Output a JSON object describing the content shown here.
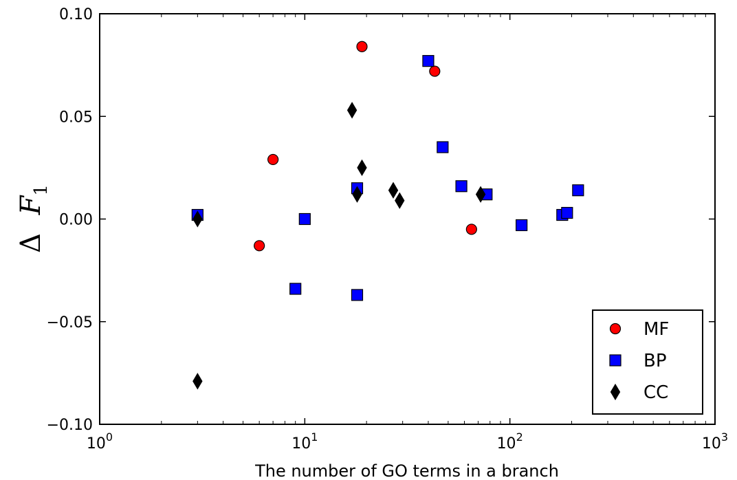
{
  "chart_data": {
    "type": "scatter",
    "xscale": "log",
    "xlim": [
      1,
      1000
    ],
    "ylim": [
      -0.1,
      0.1
    ],
    "xlabel": "The number of GO terms in a branch",
    "ylabel": "Δ F1",
    "x_tick_labels": [
      {
        "value": 1,
        "base": "10",
        "exp": "0"
      },
      {
        "value": 10,
        "base": "10",
        "exp": "1"
      },
      {
        "value": 100,
        "base": "10",
        "exp": "2"
      },
      {
        "value": 1000,
        "base": "10",
        "exp": "3"
      }
    ],
    "y_ticks": [
      -0.1,
      -0.05,
      0.0,
      0.05,
      0.1
    ],
    "y_tick_labels": [
      "−0.10",
      "−0.05",
      "0.00",
      "0.05",
      "0.10"
    ],
    "grid": false,
    "legend_position": "lower-right",
    "series": [
      {
        "name": "MF",
        "marker": "circle",
        "color": "#ff0000",
        "points": [
          {
            "x": 6,
            "y": -0.013
          },
          {
            "x": 7,
            "y": 0.029
          },
          {
            "x": 19,
            "y": 0.084
          },
          {
            "x": 43,
            "y": 0.072
          },
          {
            "x": 65,
            "y": -0.005
          }
        ]
      },
      {
        "name": "BP",
        "marker": "square",
        "color": "#0000ff",
        "points": [
          {
            "x": 3,
            "y": 0.002
          },
          {
            "x": 9,
            "y": -0.034
          },
          {
            "x": 10,
            "y": 0.0
          },
          {
            "x": 18,
            "y": 0.015
          },
          {
            "x": 18,
            "y": -0.037
          },
          {
            "x": 40,
            "y": 0.077
          },
          {
            "x": 47,
            "y": 0.035
          },
          {
            "x": 58,
            "y": 0.016
          },
          {
            "x": 77,
            "y": 0.012
          },
          {
            "x": 114,
            "y": -0.003
          },
          {
            "x": 180,
            "y": 0.002
          },
          {
            "x": 190,
            "y": 0.003
          },
          {
            "x": 215,
            "y": 0.014
          }
        ]
      },
      {
        "name": "CC",
        "marker": "diamond",
        "color": "#000000",
        "points": [
          {
            "x": 3,
            "y": 0.0
          },
          {
            "x": 3,
            "y": -0.079
          },
          {
            "x": 17,
            "y": 0.053
          },
          {
            "x": 18,
            "y": 0.012
          },
          {
            "x": 19,
            "y": 0.025
          },
          {
            "x": 27,
            "y": 0.014
          },
          {
            "x": 29,
            "y": 0.009
          },
          {
            "x": 72,
            "y": 0.012
          }
        ]
      }
    ]
  }
}
